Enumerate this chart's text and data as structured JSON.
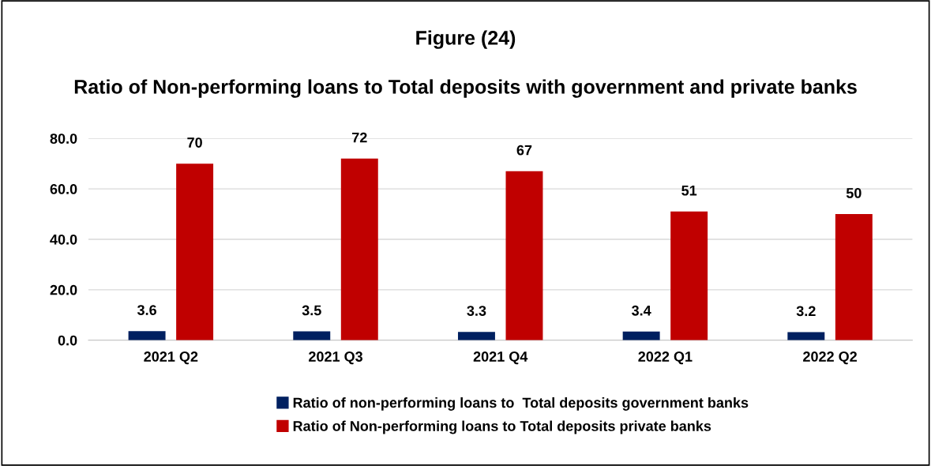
{
  "chart_data": {
    "type": "bar",
    "title": "Figure (24)",
    "subtitle": "Ratio of Non-performing loans to Total deposits with government and private banks",
    "categories": [
      "2021 Q2",
      "2021 Q3",
      "2021 Q4",
      "2022 Q1",
      "2022 Q2"
    ],
    "series": [
      {
        "name": "Ratio of non-performing loans to  Total deposits government banks",
        "color": "#002060",
        "values": [
          3.6,
          3.5,
          3.3,
          3.4,
          3.2
        ]
      },
      {
        "name": "Ratio of Non-performing loans to Total deposits private banks",
        "color": "#c00000",
        "values": [
          70,
          72,
          67,
          51,
          50
        ]
      }
    ],
    "ylim": [
      0,
      80
    ],
    "yticks": [
      {
        "value": 0,
        "label": "0.0"
      },
      {
        "value": 20,
        "label": "20.0"
      },
      {
        "value": 40,
        "label": "40.0"
      },
      {
        "value": 60,
        "label": "60.0"
      },
      {
        "value": 80,
        "label": "80.0"
      }
    ],
    "grid": "y",
    "legend": "bottom",
    "data_labels": true
  }
}
